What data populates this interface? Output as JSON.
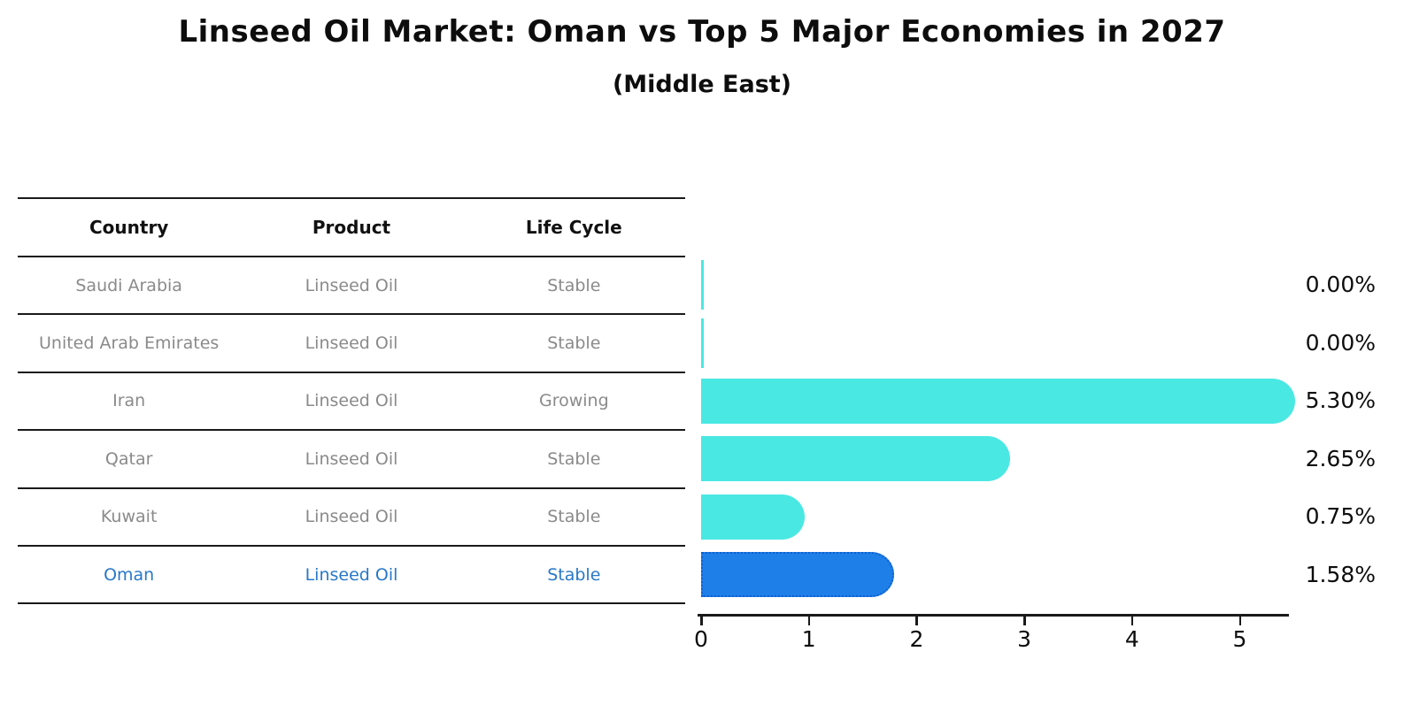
{
  "title": "Linseed Oil Market: Oman vs Top 5 Major Economies in 2027",
  "subtitle": "(Middle East)",
  "table": {
    "headers": [
      "Country",
      "Product",
      "Life Cycle"
    ],
    "rows": [
      {
        "country": "Saudi Arabia",
        "product": "Linseed Oil",
        "life_cycle": "Stable",
        "highlight": false
      },
      {
        "country": "United Arab Emirates",
        "product": "Linseed Oil",
        "life_cycle": "Stable",
        "highlight": false
      },
      {
        "country": "Iran",
        "product": "Linseed Oil",
        "life_cycle": "Growing",
        "highlight": false
      },
      {
        "country": "Qatar",
        "product": "Linseed Oil",
        "life_cycle": "Stable",
        "highlight": false
      },
      {
        "country": "Kuwait",
        "product": "Linseed Oil",
        "life_cycle": "Stable",
        "highlight": false
      },
      {
        "country": "Oman",
        "product": "Linseed Oil",
        "life_cycle": "Stable",
        "highlight": true
      }
    ]
  },
  "chart_data": {
    "type": "bar",
    "orientation": "horizontal",
    "title": "Linseed Oil Market: Oman vs Top 5 Major Economies in 2027",
    "subtitle": "(Middle East)",
    "categories": [
      "Saudi Arabia",
      "United Arab Emirates",
      "Iran",
      "Qatar",
      "Kuwait",
      "Oman"
    ],
    "values": [
      0.0,
      0.0,
      5.3,
      2.65,
      0.75,
      1.58
    ],
    "value_labels": [
      "0.00%",
      "0.00%",
      "5.30%",
      "2.65%",
      "0.75%",
      "1.58%"
    ],
    "value_unit": "percent CAGR",
    "highlight_index": 5,
    "x_ticks": [
      0,
      1,
      2,
      3,
      4,
      5
    ],
    "xlim": [
      0,
      5.5
    ],
    "grid": false,
    "legend": false,
    "colors": {
      "bar": "#4ae8e2",
      "highlight_bar": "#1e7fe8",
      "highlight_border": "#0f5fd0",
      "highlight_text": "#2878c8",
      "row_text": "#8a8a8a",
      "axis": "#1a1a1a",
      "label_text": "#0d0d0d"
    }
  }
}
